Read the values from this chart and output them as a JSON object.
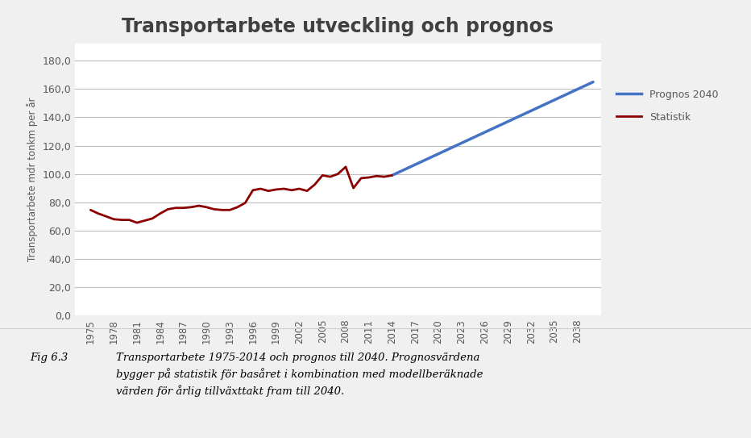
{
  "title": "Transportarbete utveckling och prognos",
  "ylabel": "Transportarbete mdr tonkm per år",
  "ytick_values": [
    0,
    20,
    40,
    60,
    80,
    100,
    120,
    140,
    160,
    180
  ],
  "ytick_labels": [
    "0,0",
    "20,0",
    "40,0",
    "60,0",
    "80,0",
    "100,0",
    "120,0",
    "140,0",
    "160,0",
    "180,0"
  ],
  "ylim": [
    0,
    192
  ],
  "xtick_years": [
    1975,
    1978,
    1981,
    1984,
    1987,
    1990,
    1993,
    1996,
    1999,
    2002,
    2005,
    2008,
    2011,
    2014,
    2017,
    2020,
    2023,
    2026,
    2029,
    2032,
    2035,
    2038
  ],
  "xlim": [
    1973,
    2041
  ],
  "statistik_years": [
    1975,
    1976,
    1977,
    1978,
    1979,
    1980,
    1981,
    1982,
    1983,
    1984,
    1985,
    1986,
    1987,
    1988,
    1989,
    1990,
    1991,
    1992,
    1993,
    1994,
    1995,
    1996,
    1997,
    1998,
    1999,
    2000,
    2001,
    2002,
    2003,
    2004,
    2005,
    2006,
    2007,
    2008,
    2009,
    2010,
    2011,
    2012,
    2013,
    2014
  ],
  "statistik_values": [
    74.5,
    72.0,
    70.0,
    68.0,
    67.5,
    67.5,
    65.5,
    67.0,
    68.5,
    72.0,
    75.0,
    76.0,
    76.0,
    76.5,
    77.5,
    76.5,
    75.0,
    74.5,
    74.5,
    76.5,
    79.5,
    88.5,
    89.5,
    88.0,
    89.0,
    89.5,
    88.5,
    89.5,
    88.0,
    92.5,
    99.0,
    98.0,
    100.0,
    105.0,
    90.0,
    97.0,
    97.5,
    98.5,
    98.0,
    99.0
  ],
  "prognos_years": [
    2014,
    2040
  ],
  "prognos_values": [
    99.0,
    165.0
  ],
  "statistik_color": "#8B0000",
  "prognos_color": "#4472C4",
  "background_color": "#FFFFFF",
  "outer_background": "#F0F0F0",
  "grid_color": "#BEBEBE",
  "title_color": "#404040",
  "axis_color": "#595959",
  "legend_labels": [
    "Prognos 2040",
    "Statistik"
  ],
  "caption_label": "Fig 6.3",
  "caption_text": "Transportarbete 1975-2014 och prognos till 2040. Prognosvärdena\nbygger på statistik för basåret i kombination med modellberäknade\nvärden för årlig tillväxttakt fram till 2040.",
  "line_width": 2.0
}
